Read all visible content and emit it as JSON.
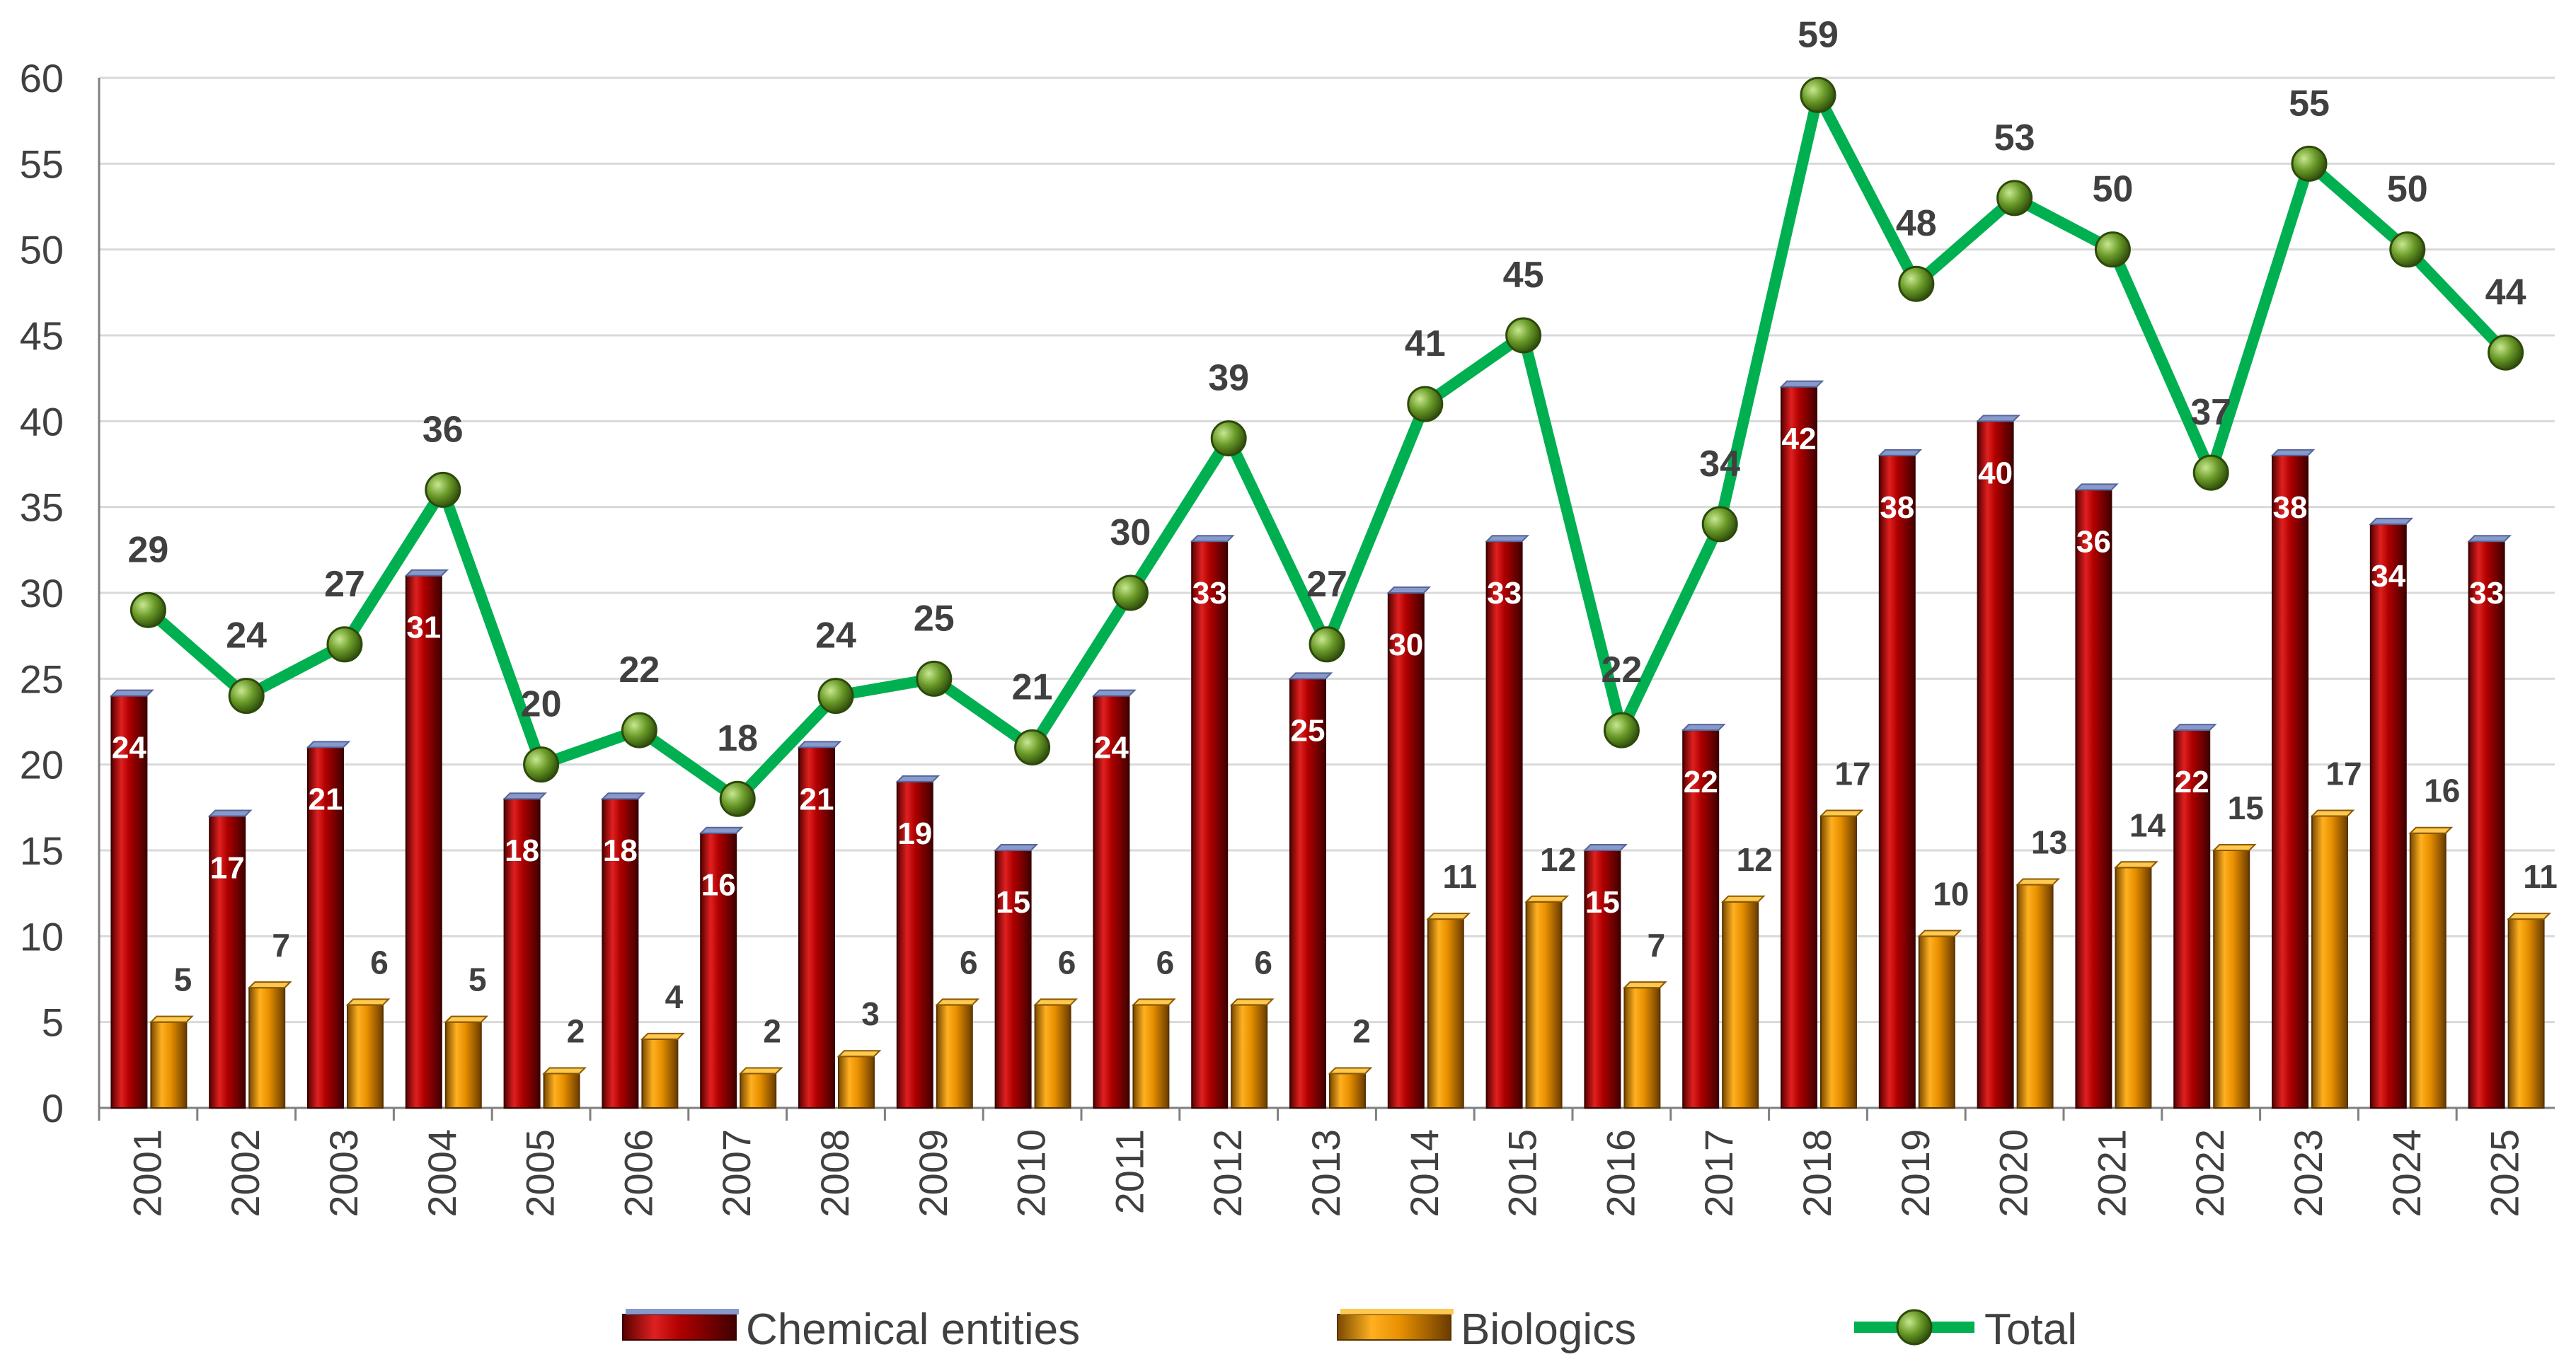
{
  "chart_data": {
    "type": "bar",
    "title": "",
    "xlabel": "",
    "ylabel": "",
    "ylim": [
      0,
      60
    ],
    "yticks": [
      0,
      5,
      10,
      15,
      20,
      25,
      30,
      35,
      40,
      45,
      50,
      55,
      60
    ],
    "grid": "horizontal",
    "legend_position": "bottom",
    "categories": [
      "2001",
      "2002",
      "2003",
      "2004",
      "2005",
      "2006",
      "2007",
      "2008",
      "2009",
      "2010",
      "2011",
      "2012",
      "2013",
      "2014",
      "2015",
      "2016",
      "2017",
      "2018",
      "2019",
      "2020",
      "2021",
      "2022",
      "2023",
      "2024",
      "2025"
    ],
    "series": [
      {
        "name": "Chemical entities",
        "kind": "bar",
        "color": "#C00000",
        "values": [
          24,
          17,
          21,
          31,
          18,
          18,
          16,
          21,
          19,
          15,
          24,
          33,
          25,
          30,
          33,
          15,
          22,
          42,
          38,
          40,
          36,
          22,
          38,
          34,
          33
        ]
      },
      {
        "name": "Biologics",
        "kind": "bar",
        "color": "#F0A000",
        "values": [
          5,
          7,
          6,
          5,
          2,
          4,
          2,
          3,
          6,
          6,
          6,
          6,
          2,
          11,
          12,
          7,
          12,
          17,
          10,
          13,
          14,
          15,
          17,
          16,
          11
        ]
      },
      {
        "name": "Total",
        "kind": "line",
        "color": "#00B050",
        "marker_color": "#4E7A1A",
        "values": [
          29,
          24,
          27,
          36,
          20,
          22,
          18,
          24,
          25,
          21,
          30,
          39,
          27,
          41,
          45,
          22,
          34,
          59,
          48,
          53,
          50,
          37,
          55,
          50,
          44
        ]
      }
    ]
  }
}
